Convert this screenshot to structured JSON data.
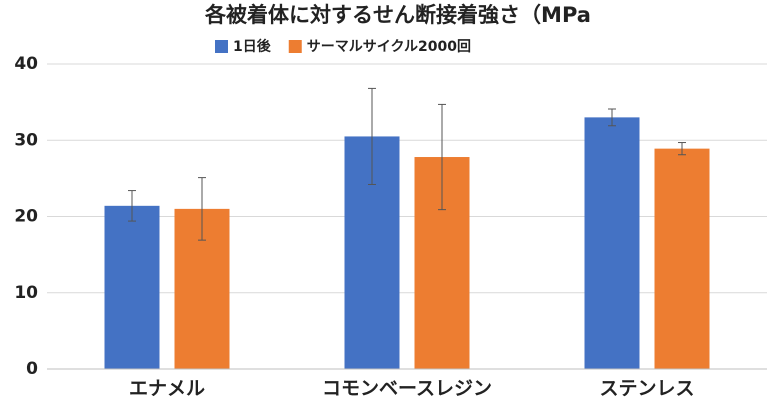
{
  "chart_data": {
    "type": "bar",
    "title": "各被着体に対するせん断接着強さ（MPa",
    "categories": [
      "エナメル",
      "コモンベースレジン",
      "ステンレス"
    ],
    "series": [
      {
        "name": "1日後",
        "color": "#4472c4",
        "values": [
          21.4,
          30.5,
          33.0
        ],
        "errors": [
          2.0,
          6.3,
          1.1
        ]
      },
      {
        "name": "サーマルサイクル2000回",
        "color": "#ed7d31",
        "values": [
          21.0,
          27.8,
          28.9
        ],
        "errors": [
          4.1,
          6.9,
          0.8
        ]
      }
    ],
    "ylim": [
      0,
      40
    ],
    "yticks": [
      0,
      10,
      20,
      30,
      40
    ],
    "grid": true,
    "legend": "top"
  }
}
